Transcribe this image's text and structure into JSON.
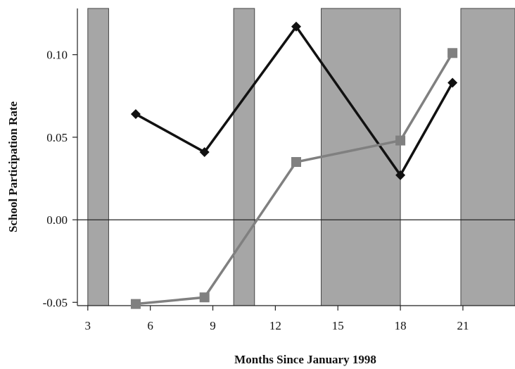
{
  "chart_data": {
    "type": "line",
    "xlabel": "Months Since January 1998",
    "ylabel": "School Participation Rate",
    "xlim": [
      2.5,
      23.5
    ],
    "ylim": [
      -0.052,
      0.128
    ],
    "xticks": [
      3,
      6,
      9,
      12,
      15,
      18,
      21
    ],
    "xtick_labels": [
      "3",
      "6",
      "9",
      "12",
      "15",
      "18",
      "21"
    ],
    "yticks": [
      -0.05,
      0.0,
      0.05,
      0.1
    ],
    "ytick_labels": [
      "-0.05",
      "0.00",
      "0.05",
      "0.10"
    ],
    "reference_line_y": 0.0,
    "grid": false,
    "shaded_periods": [
      {
        "start": 3.0,
        "end": 4.0
      },
      {
        "start": 10.0,
        "end": 11.0
      },
      {
        "start": 14.2,
        "end": 18.0
      },
      {
        "start": 20.9,
        "end": 23.5
      }
    ],
    "series": [
      {
        "color": "#111111",
        "marker": "diamond",
        "x": [
          5.3,
          8.6,
          13.0,
          18.0,
          20.5
        ],
        "y": [
          0.064,
          0.041,
          0.117,
          0.027,
          0.083
        ]
      },
      {
        "color": "#808080",
        "marker": "square",
        "x": [
          5.3,
          8.6,
          13.0,
          18.0,
          20.5
        ],
        "y": [
          -0.051,
          -0.047,
          0.035,
          0.048,
          0.101
        ]
      }
    ]
  }
}
